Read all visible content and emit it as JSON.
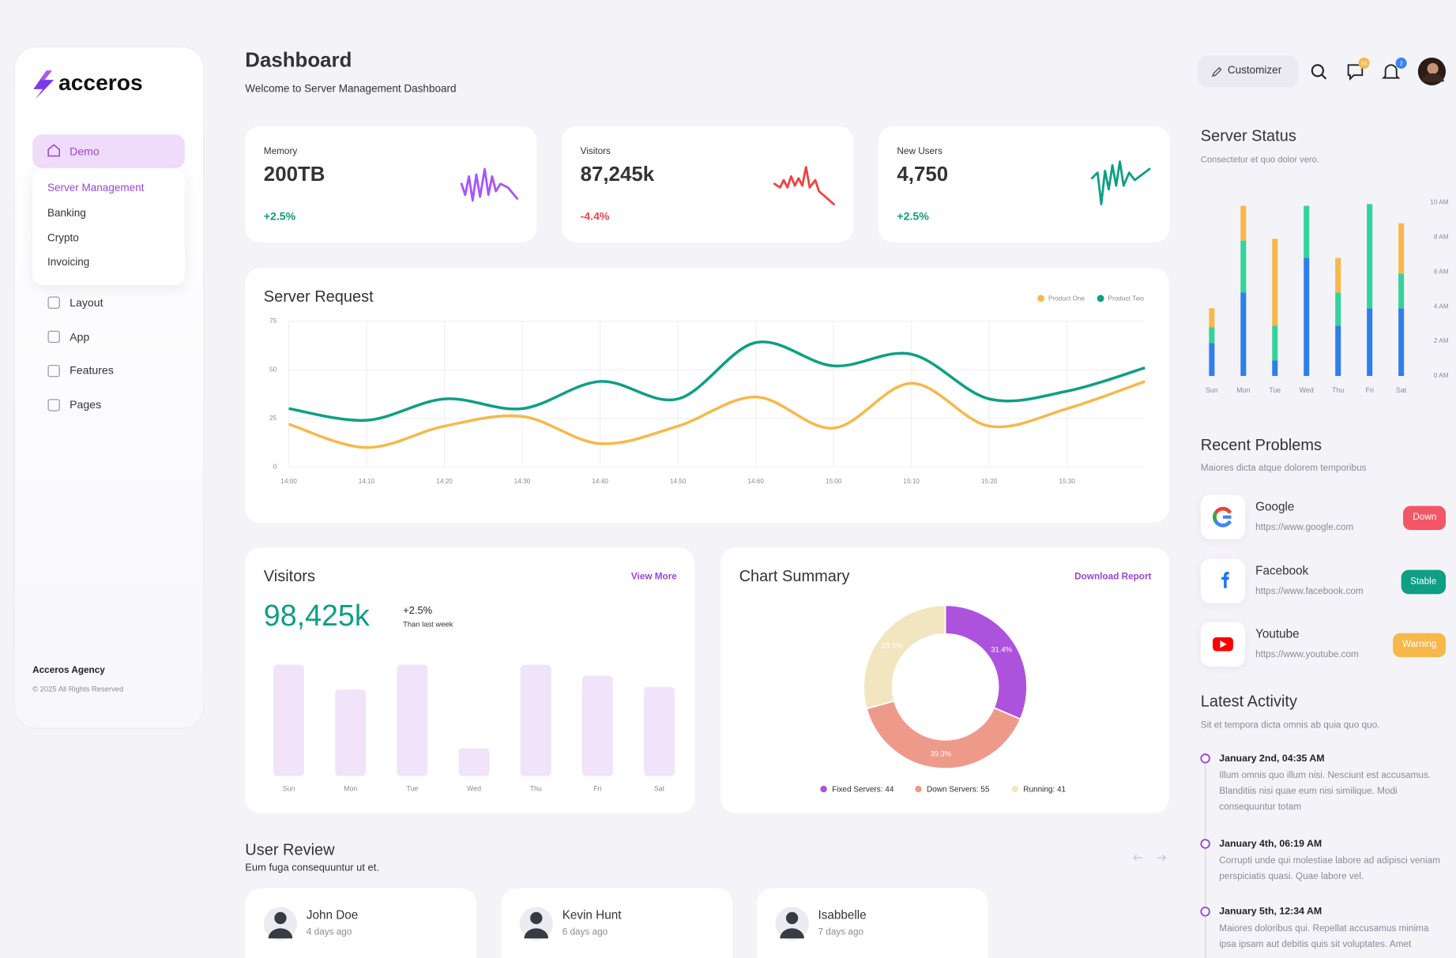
{
  "sidebar": {
    "brand": "acceros",
    "active": "Demo",
    "submenu": [
      "Server Management",
      "Banking",
      "Crypto",
      "Invoicing"
    ],
    "menu": [
      "Layout",
      "App",
      "Features",
      "Pages"
    ],
    "footer_title": "Acceros Agency",
    "footer_text": "© 2025 All Rights Reserved"
  },
  "header": {
    "title": "Dashboard",
    "subtitle": "Welcome to Server Management Dashboard",
    "customizer": "Customizer",
    "message_badge": 64,
    "notification_badge": 2
  },
  "stats": [
    {
      "label": "Memory",
      "value": "200TB",
      "change": "+2.5%",
      "color": "#a855f7"
    },
    {
      "label": "Visitors",
      "value": "87,245k",
      "change": "-4.4%",
      "color": "#ef4444"
    },
    {
      "label": "New Users",
      "value": "4,750",
      "change": "+2.5%",
      "color": "#0e9f84"
    }
  ],
  "server_request": {
    "type": "line",
    "title": "Server Request",
    "x": [
      "14:00",
      "14:10",
      "14:20",
      "14:30",
      "14:40",
      "14:50",
      "14:60",
      "15:00",
      "15:10",
      "15:20",
      "15:30",
      null
    ],
    "series": [
      {
        "name": "Product One",
        "color": "#f7b84b",
        "values": [
          22,
          10,
          21,
          26,
          12,
          21,
          36,
          20,
          43,
          21,
          30,
          44
        ]
      },
      {
        "name": "Product Two",
        "color": "#0e9f84",
        "values": [
          30,
          24,
          35,
          30,
          44,
          35,
          64,
          52,
          58,
          35,
          39,
          51
        ]
      }
    ],
    "ylim": [
      0,
      75
    ],
    "yticks": [
      0,
      25,
      50,
      75
    ],
    "grid": true,
    "legend": "top-right"
  },
  "server_status": {
    "type": "bar",
    "stacked": true,
    "title": "Server Status",
    "subtitle": "Consectetur et quo dolor vero.",
    "categories": [
      "Sun",
      "Mon",
      "Tue",
      "Wed",
      "Thu",
      "Fri",
      "Sat"
    ],
    "series": [
      {
        "color": "#2f7fe8",
        "values": [
          1.9,
          4.8,
          0.9,
          6.8,
          2.9,
          3.9,
          3.9
        ]
      },
      {
        "color": "#34d399",
        "values": [
          0.9,
          3.0,
          2.0,
          3.0,
          1.9,
          6.0,
          2.0
        ]
      },
      {
        "color": "#f7b84b",
        "values": [
          1.1,
          2.0,
          5.0,
          0,
          2.0,
          0,
          2.9
        ]
      }
    ],
    "ylim": [
      0,
      10
    ],
    "yticks": [
      {
        "value": 0,
        "label": "0 AM"
      },
      {
        "value": 2,
        "label": "2 AM"
      },
      {
        "value": 4,
        "label": "4 AM"
      },
      {
        "value": 6,
        "label": "6 AM"
      },
      {
        "value": 8,
        "label": "8 AM"
      },
      {
        "value": 10,
        "label": "10 AM"
      }
    ]
  },
  "visitors": {
    "type": "bar",
    "title": "Visitors",
    "link": "View More",
    "total": "98,425k",
    "change": "+2.5%",
    "change_note": "Than last week",
    "categories": [
      "Sun",
      "Mon",
      "Tue",
      "Wed",
      "Thu",
      "Fri",
      "Sat"
    ],
    "values": [
      120,
      93,
      120,
      30,
      120,
      108,
      96
    ],
    "color": "#f1e3f9"
  },
  "summary": {
    "type": "pie",
    "title": "Chart Summary",
    "link": "Download Report",
    "categories": [
      "Fixed Servers: 44",
      "Down Servers: 55",
      "Running: 41"
    ],
    "values": [
      44,
      55,
      41
    ],
    "value_labels": [
      "31.4%",
      "39.3%",
      "29.3%"
    ],
    "colors": [
      "#ad52dd",
      "#ee9a8a",
      "#f1e6bf"
    ]
  },
  "problems": {
    "title": "Recent Problems",
    "subtitle": "Maiores dicta atque dolorem temporibus",
    "items": [
      {
        "name": "Google",
        "url": "https://www.google.com",
        "status": "Down",
        "color": "#f25767"
      },
      {
        "name": "Facebook",
        "url": "https://www.facebook.com",
        "status": "Stable",
        "color": "#0e9f84"
      },
      {
        "name": "Youtube",
        "url": "https://www.youtube.com",
        "status": "Warning",
        "color": "#f7b84b"
      }
    ]
  },
  "activity": {
    "title": "Latest Activity",
    "subtitle": "Sit et tempora dicta omnis ab quia quo quo.",
    "items": [
      {
        "date": "January 2nd, 04:35 AM",
        "text": "Illum omnis quo illum nisi. Nesciunt est accusamus. Blanditiis nisi quae eum nisi similique. Modi consequuntur totam"
      },
      {
        "date": "January 4th, 06:19 AM",
        "text": "Corrupti unde qui molestiae labore ad adipisci veniam perspiciatis quasi. Quae labore vel."
      },
      {
        "date": "January 5th, 12:34 AM",
        "text": "Maiores doloribus qui. Repellat accusamus minima ipsa ipsam aut debitis quis sit voluptates. Amet"
      }
    ]
  },
  "reviews": {
    "title": "User Review",
    "subtitle": "Eum fuga consequuntur ut et.",
    "items": [
      {
        "name": "John Doe",
        "time": "4 days ago"
      },
      {
        "name": "Kevin Hunt",
        "time": "6 days ago"
      },
      {
        "name": "Isabbelle",
        "time": "7 days ago"
      }
    ]
  }
}
